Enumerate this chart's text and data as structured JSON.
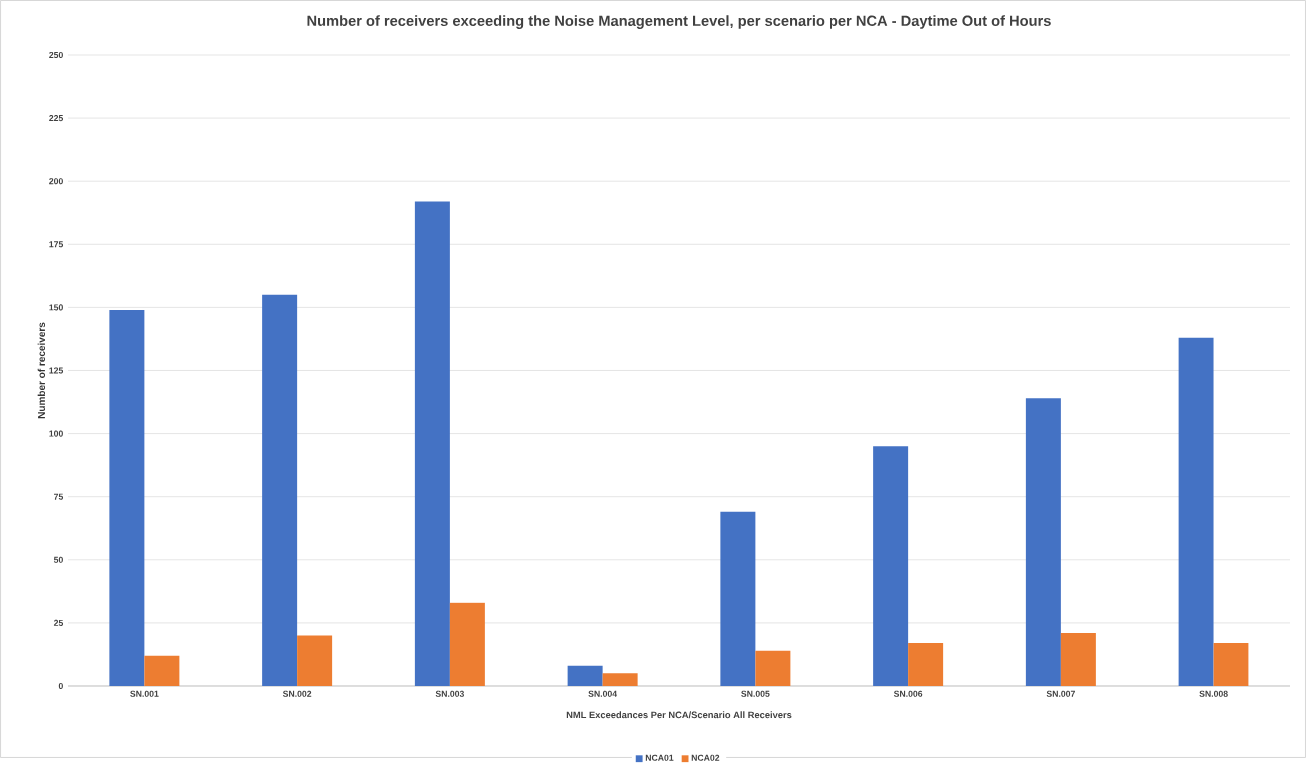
{
  "chart_data": {
    "type": "bar",
    "title": "Number of receivers exceeding the Noise Management Level, per scenario per NCA - Daytime Out of Hours",
    "xlabel": "NML Exceedances Per NCA/Scenario All Receivers",
    "ylabel": "Number of receivers",
    "categories": [
      "SN.001",
      "SN.002",
      "SN.003",
      "SN.004",
      "SN.005",
      "SN.006",
      "SN.007",
      "SN.008"
    ],
    "series": [
      {
        "name": "NCA01",
        "color": "#4472c4",
        "values": [
          149,
          155,
          192,
          8,
          69,
          95,
          114,
          138
        ]
      },
      {
        "name": "NCA02",
        "color": "#ed7d31",
        "values": [
          12,
          20,
          33,
          5,
          14,
          17,
          21,
          17
        ]
      }
    ],
    "ylim": [
      0,
      250
    ],
    "yticks": [
      0,
      25,
      50,
      75,
      100,
      125,
      150,
      175,
      200,
      225,
      250
    ],
    "grid": "y",
    "legend": "bottom"
  }
}
